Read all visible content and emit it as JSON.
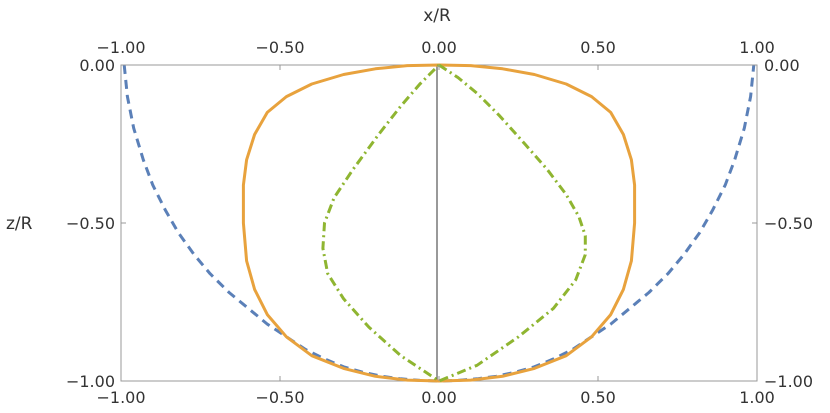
{
  "chart_data": {
    "type": "line",
    "title": "",
    "xlabel": "x/R",
    "ylabel": "z/R",
    "xlim": [
      -1.0,
      1.0
    ],
    "ylim": [
      -1.0,
      0.0
    ],
    "xticks": [
      -1.0,
      -0.5,
      0.0,
      0.5,
      1.0
    ],
    "xtick_labels": [
      "−1.00",
      "−0.50",
      "0.00",
      "0.50",
      "1.00"
    ],
    "yticks": [
      0.0,
      -0.5,
      -1.0
    ],
    "ytick_labels": [
      "0.00",
      "−0.50",
      "−1.00"
    ],
    "grid": false,
    "frame": true,
    "series": [
      {
        "color": "#5b80b8",
        "style": "dashed",
        "x": [
          -0.99,
          -0.98,
          -0.96,
          -0.93,
          -0.9,
          -0.86,
          -0.82,
          -0.77,
          -0.72,
          -0.66,
          -0.6,
          -0.54,
          -0.48,
          -0.42,
          -0.36,
          -0.3,
          -0.24,
          -0.18,
          -0.12,
          -0.06,
          0.0,
          0.06,
          0.12,
          0.18,
          0.24,
          0.3,
          0.36,
          0.42,
          0.48,
          0.54,
          0.6,
          0.66,
          0.72,
          0.77,
          0.82,
          0.86,
          0.9,
          0.93,
          0.96,
          0.98,
          0.99
        ],
        "y": [
          0.0,
          -0.1,
          -0.2,
          -0.3,
          -0.38,
          -0.46,
          -0.53,
          -0.6,
          -0.66,
          -0.72,
          -0.77,
          -0.82,
          -0.86,
          -0.9,
          -0.93,
          -0.955,
          -0.972,
          -0.985,
          -0.993,
          -0.998,
          -1.0,
          -0.998,
          -0.993,
          -0.985,
          -0.972,
          -0.955,
          -0.93,
          -0.9,
          -0.86,
          -0.82,
          -0.77,
          -0.72,
          -0.66,
          -0.6,
          -0.53,
          -0.46,
          -0.38,
          -0.3,
          -0.2,
          -0.1,
          0.0
        ]
      },
      {
        "color": "#e8a23d",
        "style": "solid",
        "x": [
          0.0,
          0.1,
          0.2,
          0.3,
          0.4,
          0.48,
          0.54,
          0.58,
          0.605,
          0.615,
          0.615,
          0.605,
          0.58,
          0.54,
          0.48,
          0.4,
          0.3,
          0.2,
          0.1,
          0.0,
          -0.1,
          -0.2,
          -0.3,
          -0.4,
          -0.48,
          -0.54,
          -0.58,
          -0.605,
          -0.615,
          -0.615,
          -0.605,
          -0.58,
          -0.54,
          -0.48,
          -0.4,
          -0.3,
          -0.2,
          -0.1,
          0.0
        ],
        "y": [
          0.0,
          -0.002,
          -0.012,
          -0.03,
          -0.06,
          -0.1,
          -0.15,
          -0.22,
          -0.3,
          -0.38,
          -0.5,
          -0.62,
          -0.71,
          -0.79,
          -0.86,
          -0.92,
          -0.96,
          -0.985,
          -0.997,
          -1.0,
          -0.997,
          -0.985,
          -0.96,
          -0.92,
          -0.86,
          -0.79,
          -0.71,
          -0.62,
          -0.5,
          -0.38,
          -0.3,
          -0.22,
          -0.15,
          -0.1,
          -0.06,
          -0.03,
          -0.012,
          -0.002,
          0.0
        ]
      },
      {
        "color": "#8fb531",
        "style": "dashdot",
        "x": [
          0.0,
          0.06,
          0.12,
          0.19,
          0.27,
          0.34,
          0.4,
          0.44,
          0.46,
          0.46,
          0.43,
          0.36,
          0.25,
          0.12,
          0.0,
          -0.12,
          -0.22,
          -0.3,
          -0.35,
          -0.365,
          -0.36,
          -0.33,
          -0.27,
          -0.19,
          -0.12,
          -0.06,
          0.0
        ],
        "y": [
          0.0,
          -0.04,
          -0.09,
          -0.16,
          -0.25,
          -0.33,
          -0.41,
          -0.48,
          -0.54,
          -0.6,
          -0.68,
          -0.77,
          -0.86,
          -0.95,
          -1.0,
          -0.92,
          -0.83,
          -0.74,
          -0.66,
          -0.58,
          -0.5,
          -0.42,
          -0.33,
          -0.22,
          -0.13,
          -0.06,
          0.0
        ]
      }
    ]
  }
}
